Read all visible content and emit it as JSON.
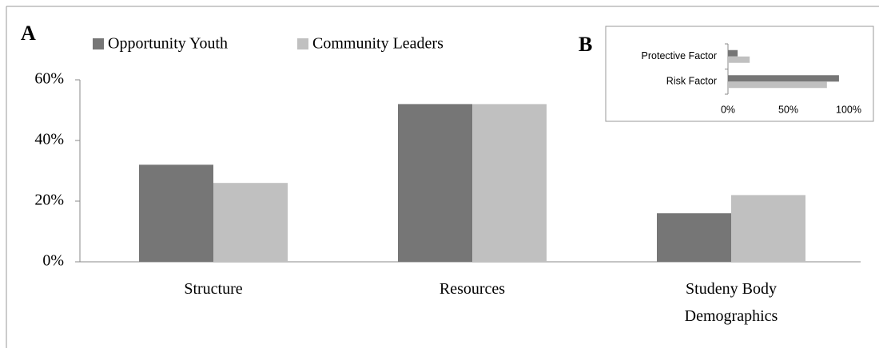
{
  "chart_data": [
    {
      "type": "bar",
      "panel_label": "A",
      "categories": [
        "Structure",
        "Resources",
        "Studeny Body Demographics"
      ],
      "series": [
        {
          "name": "Opportunity Youth",
          "color": "#767676",
          "values": [
            32,
            52,
            16
          ]
        },
        {
          "name": "Community Leaders",
          "color": "#c0c0c0",
          "values": [
            26,
            52,
            22
          ]
        }
      ],
      "ylim": [
        0,
        60
      ],
      "yticks": [
        {
          "value": 0,
          "label": "0%"
        },
        {
          "value": 20,
          "label": "20%"
        },
        {
          "value": 40,
          "label": "40%"
        },
        {
          "value": 60,
          "label": "60%"
        }
      ],
      "grid": false
    },
    {
      "type": "hbar",
      "panel_label": "B",
      "categories": [
        "Protective Factor",
        "Risk Factor"
      ],
      "series": [
        {
          "name": "Opportunity Youth",
          "color": "#767676",
          "values": [
            8,
            92
          ]
        },
        {
          "name": "Community Leaders",
          "color": "#c0c0c0",
          "values": [
            18,
            82
          ]
        }
      ],
      "xlim": [
        0,
        100
      ],
      "xticks": [
        {
          "value": 0,
          "label": "0%"
        },
        {
          "value": 50,
          "label": "50%"
        },
        {
          "value": 100,
          "label": "100%"
        }
      ],
      "grid": false
    }
  ]
}
